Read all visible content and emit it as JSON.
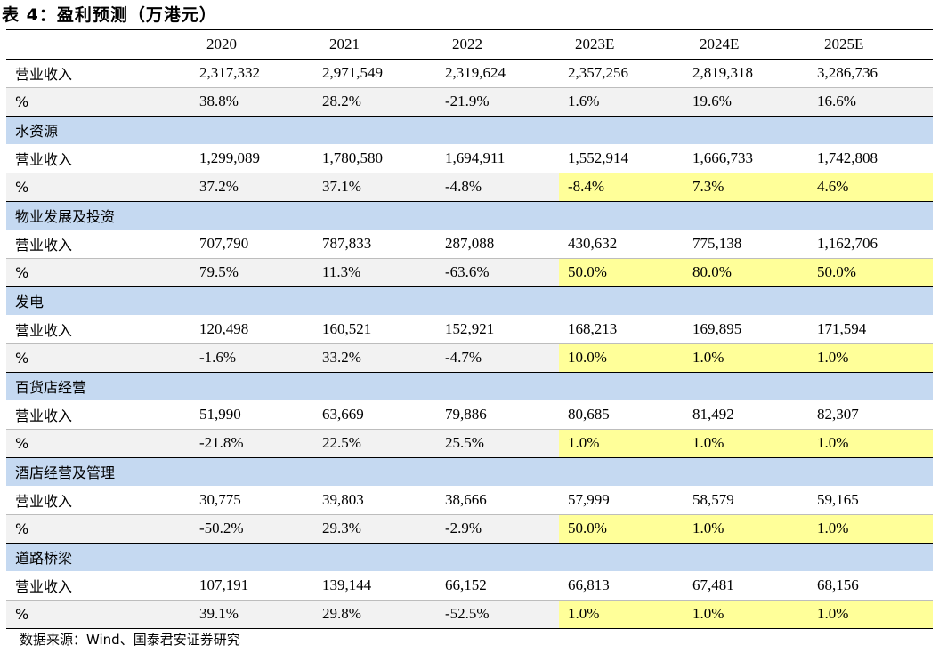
{
  "title": "表 4：盈利预测（万港元）",
  "columns": [
    "",
    "2020",
    "2021",
    "2022",
    "2023E",
    "2024E",
    "2025E"
  ],
  "highlight_color": "#ffff99",
  "segment_color": "#c5d9f1",
  "rows": [
    {
      "type": "rev",
      "label": "营业收入",
      "values": [
        "2,317,332",
        "2,971,549",
        "2,319,624",
        "2,357,256",
        "2,819,318",
        "3,286,736"
      ],
      "highlight": false
    },
    {
      "type": "pct",
      "label": "%",
      "values": [
        "38.8%",
        "28.2%",
        "-21.9%",
        "1.6%",
        "19.6%",
        "16.6%"
      ],
      "highlight": false
    },
    {
      "type": "seg",
      "label": "水资源"
    },
    {
      "type": "rev",
      "label": "营业收入",
      "values": [
        "1,299,089",
        "1,780,580",
        "1,694,911",
        "1,552,914",
        "1,666,733",
        "1,742,808"
      ],
      "highlight": false
    },
    {
      "type": "pct",
      "label": "%",
      "values": [
        "37.2%",
        "37.1%",
        "-4.8%",
        "-8.4%",
        "7.3%",
        "4.6%"
      ],
      "highlight": true
    },
    {
      "type": "seg",
      "label": "物业发展及投资"
    },
    {
      "type": "rev",
      "label": "营业收入",
      "values": [
        "707,790",
        "787,833",
        "287,088",
        "430,632",
        "775,138",
        "1,162,706"
      ],
      "highlight": false
    },
    {
      "type": "pct",
      "label": "%",
      "values": [
        "79.5%",
        "11.3%",
        "-63.6%",
        "50.0%",
        "80.0%",
        "50.0%"
      ],
      "highlight": true
    },
    {
      "type": "seg",
      "label": "发电"
    },
    {
      "type": "rev",
      "label": "营业收入",
      "values": [
        "120,498",
        "160,521",
        "152,921",
        "168,213",
        "169,895",
        "171,594"
      ],
      "highlight": false
    },
    {
      "type": "pct",
      "label": "%",
      "values": [
        "-1.6%",
        "33.2%",
        "-4.7%",
        "10.0%",
        "1.0%",
        "1.0%"
      ],
      "highlight": true
    },
    {
      "type": "seg",
      "label": "百货店经营"
    },
    {
      "type": "rev",
      "label": "营业收入",
      "values": [
        "51,990",
        "63,669",
        "79,886",
        "80,685",
        "81,492",
        "82,307"
      ],
      "highlight": false
    },
    {
      "type": "pct",
      "label": "%",
      "values": [
        "-21.8%",
        "22.5%",
        "25.5%",
        "1.0%",
        "1.0%",
        "1.0%"
      ],
      "highlight": true
    },
    {
      "type": "seg",
      "label": "酒店经营及管理"
    },
    {
      "type": "rev",
      "label": "营业收入",
      "values": [
        "30,775",
        "39,803",
        "38,666",
        "57,999",
        "58,579",
        "59,165"
      ],
      "highlight": false
    },
    {
      "type": "pct",
      "label": "%",
      "values": [
        "-50.2%",
        "29.3%",
        "-2.9%",
        "50.0%",
        "1.0%",
        "1.0%"
      ],
      "highlight": true
    },
    {
      "type": "seg",
      "label": "道路桥梁"
    },
    {
      "type": "rev",
      "label": "营业收入",
      "values": [
        "107,191",
        "139,144",
        "66,152",
        "66,813",
        "67,481",
        "68,156"
      ],
      "highlight": false
    },
    {
      "type": "pct",
      "label": "%",
      "values": [
        "39.1%",
        "29.8%",
        "-52.5%",
        "1.0%",
        "1.0%",
        "1.0%"
      ],
      "highlight": true
    }
  ],
  "source": "数据来源：Wind、国泰君安证券研究"
}
